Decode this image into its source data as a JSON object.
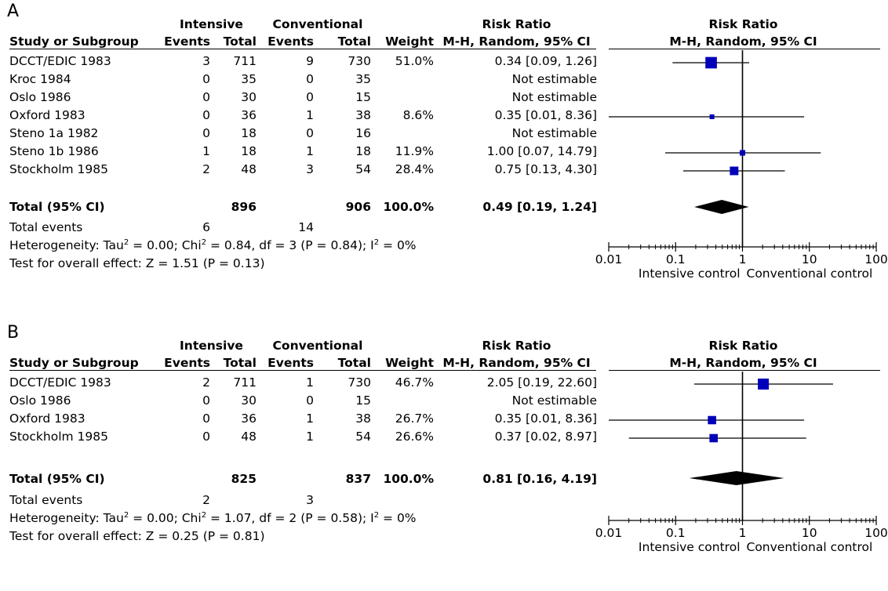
{
  "headers": {
    "intensive": "Intensive",
    "conventional": "Conventional",
    "risk_ratio": "Risk Ratio",
    "study": "Study or Subgroup",
    "events": "Events",
    "total": "Total",
    "weight": "Weight",
    "method": "M-H, Random, 95% CI"
  },
  "panels": [
    {
      "letter": "A",
      "studies": [
        {
          "name": "DCCT/EDIC 1983",
          "i_events": "3",
          "i_total": "711",
          "c_events": "9",
          "c_total": "730",
          "weight": "51.0%",
          "rr_text": "0.34 [0.09, 1.26]"
        },
        {
          "name": "Kroc 1984",
          "i_events": "0",
          "i_total": "35",
          "c_events": "0",
          "c_total": "35",
          "weight": "",
          "rr_text": "Not estimable"
        },
        {
          "name": "Oslo 1986",
          "i_events": "0",
          "i_total": "30",
          "c_events": "0",
          "c_total": "15",
          "weight": "",
          "rr_text": "Not estimable"
        },
        {
          "name": "Oxford 1983",
          "i_events": "0",
          "i_total": "36",
          "c_events": "1",
          "c_total": "38",
          "weight": "8.6%",
          "rr_text": "0.35 [0.01, 8.36]"
        },
        {
          "name": "Steno 1a 1982",
          "i_events": "0",
          "i_total": "18",
          "c_events": "0",
          "c_total": "16",
          "weight": "",
          "rr_text": "Not estimable"
        },
        {
          "name": "Steno 1b 1986",
          "i_events": "1",
          "i_total": "18",
          "c_events": "1",
          "c_total": "18",
          "weight": "11.9%",
          "rr_text": "1.00 [0.07, 14.79]"
        },
        {
          "name": "Stockholm 1985",
          "i_events": "2",
          "i_total": "48",
          "c_events": "3",
          "c_total": "54",
          "weight": "28.4%",
          "rr_text": "0.75 [0.13, 4.30]"
        }
      ],
      "total": {
        "label": "Total (95% CI)",
        "i_total": "896",
        "c_total": "906",
        "weight": "100.0%",
        "rr_text": "0.49 [0.19, 1.24]"
      },
      "total_events": {
        "label": "Total events",
        "i": "6",
        "c": "14"
      },
      "heterogeneity": {
        "pre": "Heterogeneity: Tau",
        "sup1": "2",
        "mid1": " = 0.00; Chi",
        "sup2": "2",
        "mid2": " = 0.84, df = 3 (P = 0.84); I",
        "sup3": "2",
        "post": " = 0%"
      },
      "overall": "Test for overall effect: Z = 1.51 (P = 0.13)"
    },
    {
      "letter": "B",
      "studies": [
        {
          "name": "DCCT/EDIC 1983",
          "i_events": "2",
          "i_total": "711",
          "c_events": "1",
          "c_total": "730",
          "weight": "46.7%",
          "rr_text": "2.05 [0.19, 22.60]"
        },
        {
          "name": "Oslo 1986",
          "i_events": "0",
          "i_total": "30",
          "c_events": "0",
          "c_total": "15",
          "weight": "",
          "rr_text": "Not estimable"
        },
        {
          "name": "Oxford 1983",
          "i_events": "0",
          "i_total": "36",
          "c_events": "1",
          "c_total": "38",
          "weight": "26.7%",
          "rr_text": "0.35 [0.01, 8.36]"
        },
        {
          "name": "Stockholm 1985",
          "i_events": "0",
          "i_total": "48",
          "c_events": "1",
          "c_total": "54",
          "weight": "26.6%",
          "rr_text": "0.37 [0.02, 8.97]"
        }
      ],
      "total": {
        "label": "Total (95% CI)",
        "i_total": "825",
        "c_total": "837",
        "weight": "100.0%",
        "rr_text": "0.81 [0.16, 4.19]"
      },
      "total_events": {
        "label": "Total events",
        "i": "2",
        "c": "3"
      },
      "heterogeneity": {
        "pre": "Heterogeneity: Tau",
        "sup1": "2",
        "mid1": " = 0.00; Chi",
        "sup2": "2",
        "mid2": " = 1.07, df = 2 (P = 0.58); I",
        "sup3": "2",
        "post": " = 0%"
      },
      "overall": "Test for overall effect: Z = 0.25 (P = 0.81)"
    }
  ],
  "chart_data": [
    {
      "type": "forest",
      "panel": "A",
      "x_scale": "log",
      "xlim": [
        0.01,
        100
      ],
      "x_ticks": [
        "0.01",
        "0.1",
        "1",
        "10",
        "100"
      ],
      "x_tick_values": [
        0.01,
        0.1,
        1,
        10,
        100
      ],
      "reference_line": 1,
      "xlabel_left": "Intensive control",
      "xlabel_right": "Conventional control",
      "marker_color": "#0000bb",
      "estimates": [
        {
          "study": "DCCT/EDIC 1983",
          "rr": 0.34,
          "lo": 0.09,
          "hi": 1.26,
          "weight": 51.0
        },
        {
          "study": "Oxford 1983",
          "rr": 0.35,
          "lo": 0.01,
          "hi": 8.36,
          "weight": 8.6
        },
        {
          "study": "Steno 1b 1986",
          "rr": 1.0,
          "lo": 0.07,
          "hi": 14.79,
          "weight": 11.9
        },
        {
          "study": "Stockholm 1985",
          "rr": 0.75,
          "lo": 0.13,
          "hi": 4.3,
          "weight": 28.4
        }
      ],
      "pooled": {
        "rr": 0.49,
        "lo": 0.19,
        "hi": 1.24
      }
    },
    {
      "type": "forest",
      "panel": "B",
      "x_scale": "log",
      "xlim": [
        0.01,
        100
      ],
      "x_ticks": [
        "0.01",
        "0.1",
        "1",
        "10",
        "100"
      ],
      "x_tick_values": [
        0.01,
        0.1,
        1,
        10,
        100
      ],
      "reference_line": 1,
      "xlabel_left": "Intensive control",
      "xlabel_right": "Conventional control",
      "marker_color": "#0000bb",
      "estimates": [
        {
          "study": "DCCT/EDIC 1983",
          "rr": 2.05,
          "lo": 0.19,
          "hi": 22.6,
          "weight": 46.7
        },
        {
          "study": "Oxford 1983",
          "rr": 0.35,
          "lo": 0.01,
          "hi": 8.36,
          "weight": 26.7
        },
        {
          "study": "Stockholm 1985",
          "rr": 0.37,
          "lo": 0.02,
          "hi": 8.97,
          "weight": 26.6
        }
      ],
      "pooled": {
        "rr": 0.81,
        "lo": 0.16,
        "hi": 4.19
      }
    }
  ]
}
